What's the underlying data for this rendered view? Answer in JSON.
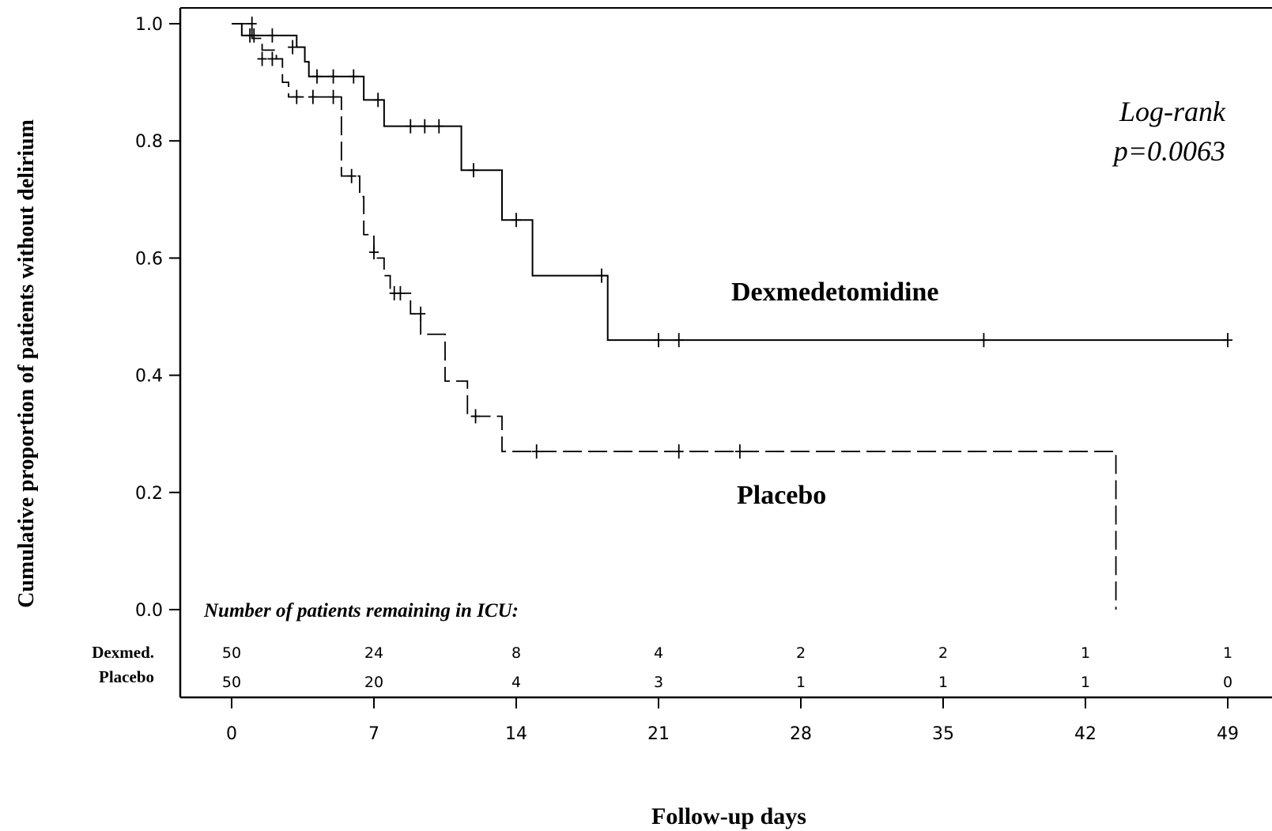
{
  "chart_data": {
    "type": "line",
    "ylabel": "Cumulative proportion of patients without delirium",
    "xlabel": "Follow-up days",
    "xlim": [
      0,
      49
    ],
    "ylim": [
      0,
      1.0
    ],
    "x_ticks": [
      0,
      7,
      14,
      21,
      28,
      35,
      42,
      49
    ],
    "x_tick_labels": [
      "0",
      "7",
      "14",
      "21",
      "28",
      "35",
      "42",
      "49"
    ],
    "y_ticks": [
      0.0,
      0.2,
      0.4,
      0.6,
      0.8,
      1.0
    ],
    "y_tick_labels": [
      "0.0",
      "0.2",
      "0.4",
      "0.6",
      "0.8",
      "1.0"
    ],
    "grid": false,
    "annotation": {
      "line1": "Log-rank",
      "line2": "p=0.0063"
    },
    "series": [
      {
        "name": "Dexmedetomidine",
        "style": "solid",
        "steps": [
          [
            0,
            1.0
          ],
          [
            0.5,
            0.98
          ],
          [
            3.2,
            0.96
          ],
          [
            3.6,
            0.935
          ],
          [
            3.8,
            0.91
          ],
          [
            6.5,
            0.87
          ],
          [
            7.5,
            0.825
          ],
          [
            11.3,
            0.75
          ],
          [
            13.3,
            0.665
          ],
          [
            14.8,
            0.57
          ],
          [
            18.5,
            0.46
          ],
          [
            49,
            0.46
          ]
        ],
        "censored": [
          [
            0.9,
            0.98
          ],
          [
            1.0,
            1.0
          ],
          [
            1.1,
            0.98
          ],
          [
            2.0,
            0.98
          ],
          [
            3.0,
            0.96
          ],
          [
            4.2,
            0.91
          ],
          [
            5.0,
            0.91
          ],
          [
            6.0,
            0.91
          ],
          [
            7.2,
            0.87
          ],
          [
            8.8,
            0.825
          ],
          [
            9.5,
            0.825
          ],
          [
            10.2,
            0.825
          ],
          [
            11.9,
            0.75
          ],
          [
            14.0,
            0.665
          ],
          [
            18.2,
            0.57
          ],
          [
            21.0,
            0.46
          ],
          [
            22.0,
            0.46
          ],
          [
            37.0,
            0.46
          ],
          [
            49.0,
            0.46
          ]
        ]
      },
      {
        "name": "Placebo",
        "style": "dashed",
        "steps": [
          [
            0,
            1.0
          ],
          [
            1.0,
            0.975
          ],
          [
            1.5,
            0.955
          ],
          [
            2.2,
            0.94
          ],
          [
            2.5,
            0.9
          ],
          [
            2.8,
            0.875
          ],
          [
            5.4,
            0.74
          ],
          [
            6.3,
            0.705
          ],
          [
            6.5,
            0.64
          ],
          [
            7.0,
            0.6
          ],
          [
            7.5,
            0.57
          ],
          [
            7.8,
            0.54
          ],
          [
            8.8,
            0.505
          ],
          [
            9.3,
            0.47
          ],
          [
            10.5,
            0.39
          ],
          [
            11.6,
            0.33
          ],
          [
            13.3,
            0.27
          ],
          [
            43.5,
            0.0
          ]
        ],
        "censored": [
          [
            1.5,
            0.94
          ],
          [
            2.0,
            0.94
          ],
          [
            3.2,
            0.875
          ],
          [
            4.0,
            0.875
          ],
          [
            5.0,
            0.875
          ],
          [
            5.9,
            0.74
          ],
          [
            7.0,
            0.61
          ],
          [
            8.0,
            0.54
          ],
          [
            8.3,
            0.54
          ],
          [
            9.3,
            0.505
          ],
          [
            12.0,
            0.33
          ],
          [
            15.0,
            0.27
          ],
          [
            22.0,
            0.27
          ],
          [
            25.0,
            0.27
          ]
        ]
      }
    ],
    "series_labels": [
      "Dexmedetomidine",
      "Placebo"
    ],
    "risk_table": {
      "title": "Number of patients remaining in ICU:",
      "rows": [
        {
          "label": "Dexmed.",
          "values": [
            "50",
            "24",
            "8",
            "4",
            "2",
            "2",
            "1",
            "1"
          ]
        },
        {
          "label": "Placebo",
          "values": [
            "50",
            "20",
            "4",
            "3",
            "1",
            "1",
            "1",
            "0"
          ]
        }
      ]
    }
  }
}
